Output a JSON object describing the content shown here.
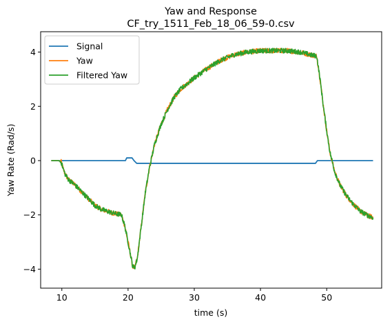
{
  "chart_data": {
    "type": "line",
    "title_line1": "Yaw and Response",
    "title_line2": "CF_try_1511_Feb_18_06_59-0.csv",
    "xlabel": "time (s)",
    "ylabel": "Yaw Rate (Rad/s)",
    "xlim": [
      6.8,
      58.3
    ],
    "ylim": [
      -4.7,
      4.75
    ],
    "x_ticks": [
      10,
      20,
      30,
      40,
      50
    ],
    "x_tick_labels": [
      "10",
      "20",
      "30",
      "40",
      "50"
    ],
    "y_ticks": [
      -4,
      -2,
      0,
      2,
      4
    ],
    "y_tick_labels": [
      "−4",
      "−2",
      "0",
      "2",
      "4"
    ],
    "grid": false,
    "legend_position": "top-left",
    "series": [
      {
        "name": "Signal",
        "color": "#1f77b4",
        "x": [
          8.4,
          19.6,
          19.8,
          20.6,
          20.9,
          21.3,
          48.3,
          48.6,
          57.0
        ],
        "y": [
          0.0,
          0.0,
          0.1,
          0.1,
          0.0,
          -0.1,
          -0.1,
          0.0,
          0.0
        ]
      },
      {
        "name": "Yaw",
        "color": "#ff7f0e",
        "x": [
          8.4,
          9.5,
          9.9,
          10.2,
          10.5,
          11.0,
          12.0,
          13.0,
          14.0,
          15.0,
          16.0,
          17.0,
          18.0,
          19.0,
          19.5,
          20.0,
          20.4,
          20.7,
          21.0,
          21.4,
          22.0,
          22.6,
          23.2,
          24.0,
          25.0,
          26.0,
          27.0,
          28.0,
          30.0,
          32.0,
          34.0,
          36.0,
          38.0,
          40.0,
          42.0,
          44.0,
          46.0,
          47.5,
          48.5,
          49.0,
          49.5,
          50.0,
          50.5,
          51.2,
          52.0,
          53.0,
          54.0,
          55.0,
          56.0,
          57.0
        ],
        "y": [
          0.0,
          0.0,
          -0.05,
          -0.3,
          -0.5,
          -0.7,
          -0.9,
          -1.15,
          -1.4,
          -1.65,
          -1.8,
          -1.88,
          -1.95,
          -2.0,
          -2.4,
          -3.0,
          -3.5,
          -3.9,
          -3.95,
          -3.6,
          -2.4,
          -1.2,
          -0.3,
          0.6,
          1.35,
          1.9,
          2.35,
          2.65,
          3.05,
          3.4,
          3.7,
          3.9,
          4.0,
          4.05,
          4.05,
          4.05,
          4.0,
          3.9,
          3.85,
          3.0,
          2.0,
          1.1,
          0.3,
          -0.4,
          -0.9,
          -1.3,
          -1.6,
          -1.85,
          -2.0,
          -2.1
        ]
      },
      {
        "name": "Filtered Yaw",
        "color": "#2ca02c",
        "x": [
          8.4,
          9.5,
          9.9,
          10.2,
          10.5,
          11.0,
          12.0,
          13.0,
          14.0,
          15.0,
          16.0,
          17.0,
          18.0,
          19.0,
          19.5,
          20.0,
          20.4,
          20.7,
          21.0,
          21.4,
          22.0,
          22.6,
          23.2,
          24.0,
          25.0,
          26.0,
          27.0,
          28.0,
          30.0,
          32.0,
          34.0,
          36.0,
          38.0,
          40.0,
          42.0,
          44.0,
          46.0,
          47.5,
          48.5,
          49.0,
          49.5,
          50.0,
          50.5,
          51.2,
          52.0,
          53.0,
          54.0,
          55.0,
          56.0,
          57.0
        ],
        "y": [
          0.0,
          0.0,
          -0.05,
          -0.3,
          -0.5,
          -0.7,
          -0.9,
          -1.15,
          -1.4,
          -1.65,
          -1.8,
          -1.88,
          -1.95,
          -2.0,
          -2.4,
          -3.0,
          -3.5,
          -3.9,
          -3.95,
          -3.6,
          -2.4,
          -1.2,
          -0.3,
          0.6,
          1.35,
          1.9,
          2.35,
          2.65,
          3.05,
          3.4,
          3.7,
          3.9,
          4.0,
          4.05,
          4.05,
          4.05,
          4.0,
          3.9,
          3.85,
          3.0,
          2.0,
          1.1,
          0.3,
          -0.4,
          -0.9,
          -1.3,
          -1.6,
          -1.85,
          -2.0,
          -2.1
        ]
      }
    ]
  }
}
